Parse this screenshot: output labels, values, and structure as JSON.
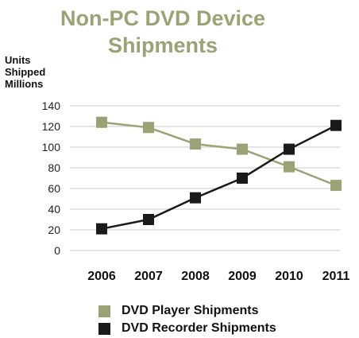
{
  "chart_data": {
    "type": "line",
    "title": "Non-PC DVD Device Shipments",
    "ylabel_lines": [
      "Units",
      "Shipped",
      "Millions"
    ],
    "xlabel": "",
    "categories": [
      "2006",
      "2007",
      "2008",
      "2009",
      "2010",
      "2011"
    ],
    "ylim": [
      0,
      140
    ],
    "yticks": [
      "140",
      "120",
      "100",
      "80",
      "60",
      "40",
      "20",
      "0"
    ],
    "grid": "horizontal",
    "legend_position": "bottom",
    "series": [
      {
        "name": "DVD Player Shipments",
        "color": "#9aa376",
        "marker": "square",
        "values": [
          124,
          119,
          103,
          98,
          81,
          63
        ]
      },
      {
        "name": "DVD Recorder Shipments",
        "color": "#1a1a1a",
        "marker": "square",
        "values": [
          21,
          30,
          51,
          70,
          98,
          121
        ]
      }
    ]
  }
}
